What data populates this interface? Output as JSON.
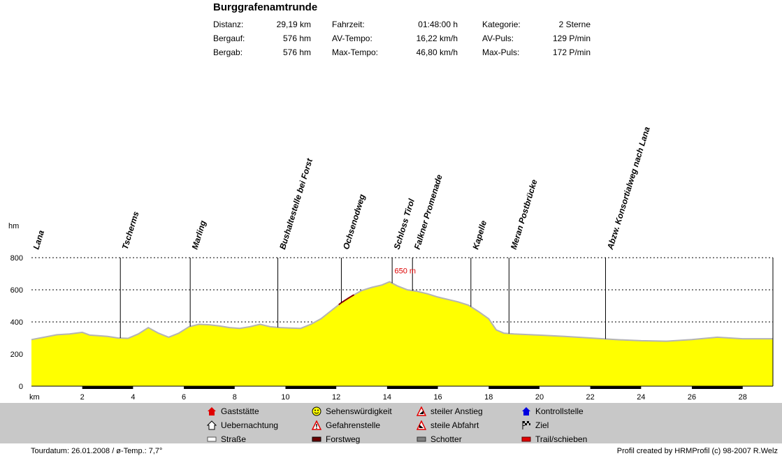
{
  "title": "Burggrafenamtrunde",
  "stats": [
    {
      "label": "Distanz:",
      "value": "29,19 km"
    },
    {
      "label": "Bergauf:",
      "value": "576 hm"
    },
    {
      "label": "Bergab:",
      "value": "576 hm"
    },
    {
      "label": "Fahrzeit:",
      "value": "01:48:00 h"
    },
    {
      "label": "AV-Tempo:",
      "value": "16,22 km/h"
    },
    {
      "label": "Max-Tempo:",
      "value": "46,80 km/h"
    },
    {
      "label": "Kategorie:",
      "value": "2 Sterne"
    },
    {
      "label": "AV-Puls:",
      "value": "129 P/min"
    },
    {
      "label": "Max-Puls:",
      "value": "172 P/min"
    }
  ],
  "chart_data": {
    "type": "area",
    "ylabel": "hm",
    "xlabel": "km",
    "xlim": [
      0,
      29.19
    ],
    "ylim": [
      0,
      800
    ],
    "yticks": [
      0,
      200,
      400,
      600,
      800
    ],
    "xticks": [
      2,
      4,
      6,
      8,
      10,
      12,
      14,
      16,
      18,
      20,
      22,
      24,
      26,
      28
    ],
    "grid": true,
    "fill_color": "#ffff00",
    "line_color": "#b4b4b4",
    "trail_color": "#8b0000",
    "max_label": "650 m",
    "max_point": {
      "x": 14.1,
      "y": 650
    },
    "x": [
      0,
      0.5,
      1,
      1.5,
      2,
      2.3,
      2.6,
      3,
      3.4,
      3.8,
      4.2,
      4.6,
      5.0,
      5.4,
      5.8,
      6.2,
      6.6,
      7.0,
      7.4,
      7.8,
      8.2,
      8.6,
      9.0,
      9.4,
      9.8,
      10.2,
      10.6,
      11.0,
      11.4,
      11.8,
      12.2,
      12.6,
      13.0,
      13.4,
      13.8,
      14.1,
      14.4,
      14.8,
      15.2,
      15.6,
      16.0,
      16.4,
      16.8,
      17.2,
      17.6,
      18.0,
      18.3,
      18.6,
      19.0,
      20.0,
      21.0,
      22.0,
      23.0,
      24.0,
      25.0,
      26.0,
      27.0,
      28.0,
      29.19
    ],
    "y": [
      290,
      305,
      320,
      325,
      335,
      318,
      315,
      310,
      300,
      298,
      325,
      365,
      330,
      305,
      330,
      370,
      385,
      382,
      375,
      365,
      360,
      370,
      385,
      370,
      365,
      362,
      360,
      385,
      420,
      470,
      520,
      560,
      595,
      615,
      630,
      650,
      625,
      600,
      590,
      575,
      555,
      540,
      525,
      505,
      465,
      420,
      350,
      330,
      325,
      318,
      310,
      300,
      290,
      283,
      280,
      290,
      305,
      295,
      295
    ],
    "trail_segment": {
      "x_from": 12.1,
      "x_to": 12.7
    },
    "waypoints": [
      {
        "name": "Lana",
        "km": 0
      },
      {
        "name": "Tscherms",
        "km": 3.5
      },
      {
        "name": "Marling",
        "km": 6.25
      },
      {
        "name": "Bushaltestelle bei Forst",
        "km": 9.7
      },
      {
        "name": "Ochsenodweg",
        "km": 12.2
      },
      {
        "name": "Schloss Tirol",
        "km": 14.2
      },
      {
        "name": "Falkner Promenade",
        "km": 15.0
      },
      {
        "name": "Kapelle",
        "km": 17.3
      },
      {
        "name": "Meran Postbrücke",
        "km": 18.8
      },
      {
        "name": "Abzw. Konsortialweg nach Lana",
        "km": 22.6
      }
    ]
  },
  "legend": [
    {
      "label": "Gaststätte",
      "icon": "house-red-icon"
    },
    {
      "label": "Uebernachtung",
      "icon": "house-white-icon"
    },
    {
      "label": "Straße",
      "icon": "road-white-swatch"
    },
    {
      "label": "Sehenswürdigkeit",
      "icon": "smiley-icon"
    },
    {
      "label": "Gefahrenstelle",
      "icon": "warning-exclamation-icon"
    },
    {
      "label": "Forstweg",
      "icon": "forest-road-swatch"
    },
    {
      "label": "steiler Anstieg",
      "icon": "steep-climb-icon"
    },
    {
      "label": "steile Abfahrt",
      "icon": "steep-descent-icon"
    },
    {
      "label": "Schotter",
      "icon": "gravel-swatch"
    },
    {
      "label": "Kontrollstelle",
      "icon": "house-blue-icon"
    },
    {
      "label": "Ziel",
      "icon": "finish-flag-icon"
    },
    {
      "label": "Trail/schieben",
      "icon": "trail-red-swatch"
    }
  ],
  "footer": {
    "left": "Tourdatum: 26.01.2008  /  ø-Temp.: 7,7°",
    "right": "Profil created by HRMProfil (c) 98-2007 R.Welz"
  }
}
